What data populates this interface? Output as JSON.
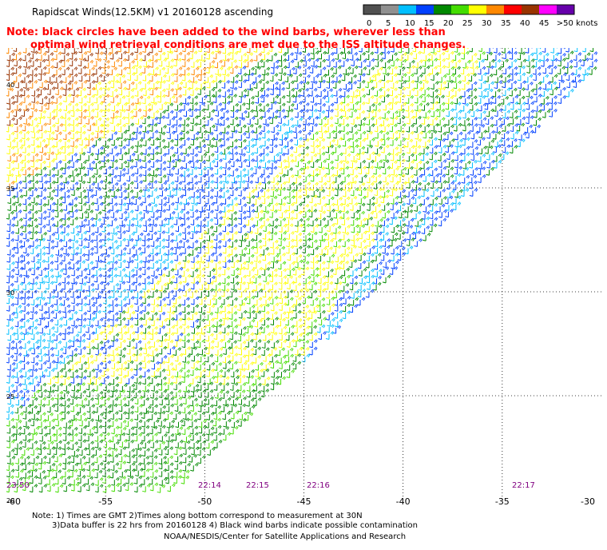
{
  "title": "Rapidscat Winds(12.5KM) v1 20160128 ascending",
  "note": {
    "line1": "Note: black circles have been added to the wind barbs, wherever less than",
    "line2": "optimal wind retrieval conditions are met due to the ISS altitude changes."
  },
  "colorbar": {
    "labels": [
      "0",
      "5",
      "10",
      "15",
      "20",
      "25",
      "30",
      "35",
      "40",
      "45",
      ">50 knots"
    ],
    "colors": [
      "#505050",
      "#909090",
      "#00bfff",
      "#0040ff",
      "#008800",
      "#44dd00",
      "#ffff00",
      "#ff8800",
      "#ff0000",
      "#993300",
      "#ff00ff",
      "#6600aa"
    ]
  },
  "axes": {
    "lon_labels": [
      "-60",
      "-55",
      "-50",
      "-45",
      "-40",
      "-35",
      "-30"
    ],
    "lat_labels": [
      "20",
      "25",
      "30",
      "35",
      "40"
    ]
  },
  "times": [
    "23:50",
    "22:14",
    "22:15",
    "22:16",
    "22:17"
  ],
  "footer": {
    "line1": "Note: 1) Times are GMT 2)Times along bottom correspond to measurement at 30N",
    "line2": "3)Data buffer is 22 hrs from 20160128 4) Black wind barbs indicate possible contamination",
    "line3": "NOAA/NESDIS/Center for Satellite Applications and Research"
  }
}
